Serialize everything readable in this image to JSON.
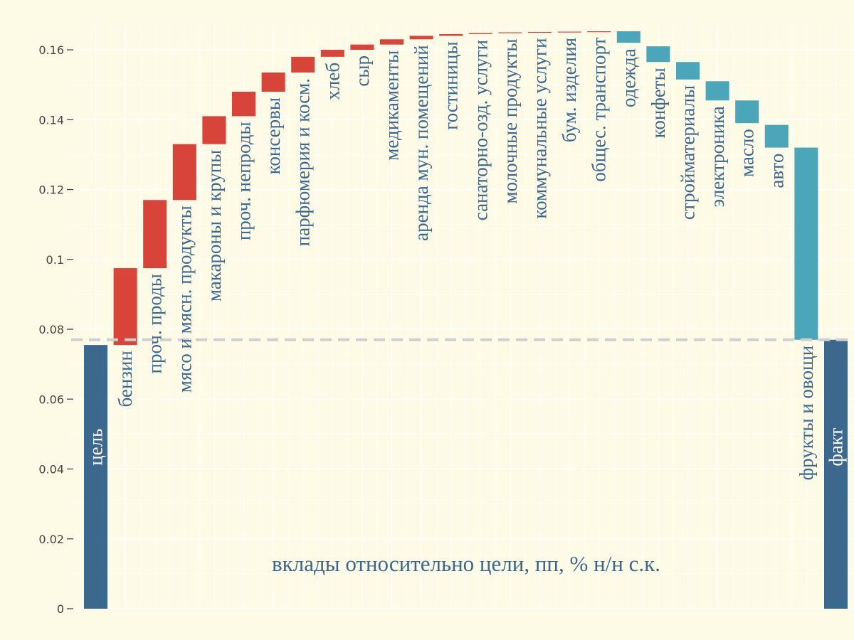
{
  "chart_data": {
    "type": "bar",
    "subtype": "waterfall",
    "title": "вклады относительно цели, пп, % н/н с.к.",
    "xlabel": "",
    "ylabel": "",
    "ylim": [
      0,
      0.17
    ],
    "yticks": [
      0,
      0.02,
      0.04,
      0.06,
      0.08,
      0.1,
      0.12,
      0.14,
      0.16
    ],
    "ytick_labels": [
      "0",
      "0.02",
      "0.04",
      "0.06",
      "0.08",
      "0.1",
      "0.12",
      "0.14",
      "0.16"
    ],
    "grid": true,
    "target_line": 0.077,
    "colors": {
      "background": "#fdfbe6",
      "total": "#3c688d",
      "positive": "#d9443a",
      "negative": "#4aa6b8",
      "target_line": "#cfcfcf",
      "gridline": "#ffffff",
      "title_text": "#3c688d",
      "tick_text": "#444444"
    },
    "bars": [
      {
        "label": "цель",
        "kind": "total",
        "start": 0,
        "end": 0.0755
      },
      {
        "label": "бензин",
        "kind": "positive",
        "start": 0.0755,
        "end": 0.0975
      },
      {
        "label": "проч. проды",
        "kind": "positive",
        "start": 0.0975,
        "end": 0.117
      },
      {
        "label": "мясо и мясн. продукты",
        "kind": "positive",
        "start": 0.117,
        "end": 0.133
      },
      {
        "label": "макароны и крупы",
        "kind": "positive",
        "start": 0.133,
        "end": 0.141
      },
      {
        "label": "проч. непроды",
        "kind": "positive",
        "start": 0.141,
        "end": 0.148
      },
      {
        "label": "консервы",
        "kind": "positive",
        "start": 0.148,
        "end": 0.1535
      },
      {
        "label": "парфюмерия и косм.",
        "kind": "positive",
        "start": 0.1535,
        "end": 0.158
      },
      {
        "label": "хлеб",
        "kind": "positive",
        "start": 0.158,
        "end": 0.16
      },
      {
        "label": "сыр",
        "kind": "positive",
        "start": 0.16,
        "end": 0.1615
      },
      {
        "label": "медикаменты",
        "kind": "positive",
        "start": 0.1615,
        "end": 0.163
      },
      {
        "label": "аренда мун. помещений",
        "kind": "positive",
        "start": 0.163,
        "end": 0.164
      },
      {
        "label": "гостиницы",
        "kind": "positive",
        "start": 0.164,
        "end": 0.1645
      },
      {
        "label": "санаторно-озд. услуги",
        "kind": "positive",
        "start": 0.1645,
        "end": 0.1648
      },
      {
        "label": "молочные продукты",
        "kind": "positive",
        "start": 0.1648,
        "end": 0.165
      },
      {
        "label": "коммунальные услуги",
        "kind": "positive",
        "start": 0.165,
        "end": 0.1651
      },
      {
        "label": "бум. изделия",
        "kind": "positive",
        "start": 0.1651,
        "end": 0.1652
      },
      {
        "label": "общес. транспорт",
        "kind": "positive",
        "start": 0.1652,
        "end": 0.1653
      },
      {
        "label": "одежда",
        "kind": "negative",
        "start": 0.1653,
        "end": 0.162
      },
      {
        "label": "конфеты",
        "kind": "negative",
        "start": 0.161,
        "end": 0.1565
      },
      {
        "label": "стройматериалы",
        "kind": "negative",
        "start": 0.1565,
        "end": 0.1515
      },
      {
        "label": "электроника",
        "kind": "negative",
        "start": 0.151,
        "end": 0.1455
      },
      {
        "label": "масло",
        "kind": "negative",
        "start": 0.1455,
        "end": 0.139
      },
      {
        "label": "авто",
        "kind": "negative",
        "start": 0.1385,
        "end": 0.132
      },
      {
        "label": "фрукты и овощи",
        "kind": "negative",
        "start": 0.132,
        "end": 0.077
      },
      {
        "label": "факт",
        "kind": "total",
        "start": 0,
        "end": 0.077
      }
    ]
  }
}
